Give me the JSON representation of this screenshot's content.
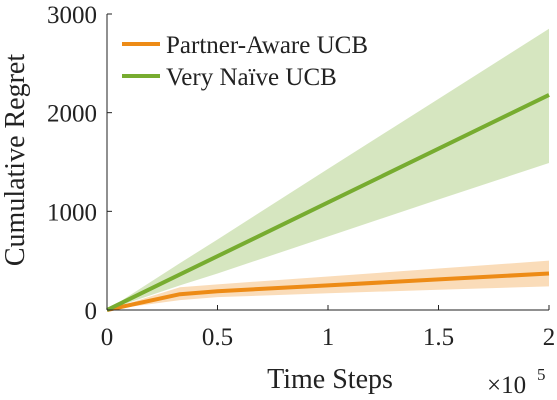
{
  "chart_data": {
    "type": "line",
    "xlabel": "Time Steps",
    "ylabel": "Cumulative Regret",
    "xscale_base": "×10",
    "xscale_exponent": "5",
    "x": [
      0,
      0.33,
      0.5,
      1,
      1.5,
      2
    ],
    "xlim": [
      0,
      2
    ],
    "xticks": [
      0,
      0.5,
      1,
      1.5,
      2
    ],
    "ylim": [
      0,
      3000
    ],
    "yticks": [
      0,
      1000,
      2000,
      3000
    ],
    "legend": "upper-left",
    "band_opacity": 0.3,
    "series": [
      {
        "name": "Partner-Aware UCB",
        "color": "#ed8b16",
        "values": [
          0,
          160,
          190,
          250,
          310,
          370
        ],
        "upper": [
          0,
          230,
          260,
          340,
          420,
          500
        ],
        "lower": [
          0,
          100,
          130,
          170,
          205,
          240
        ]
      },
      {
        "name": "Very Naïve UCB",
        "color": "#77ac30",
        "values": [
          0,
          360,
          545,
          1090,
          1635,
          2180
        ],
        "upper": [
          0,
          475,
          715,
          1430,
          2140,
          2850
        ],
        "lower": [
          0,
          250,
          370,
          745,
          1120,
          1490
        ]
      }
    ]
  }
}
